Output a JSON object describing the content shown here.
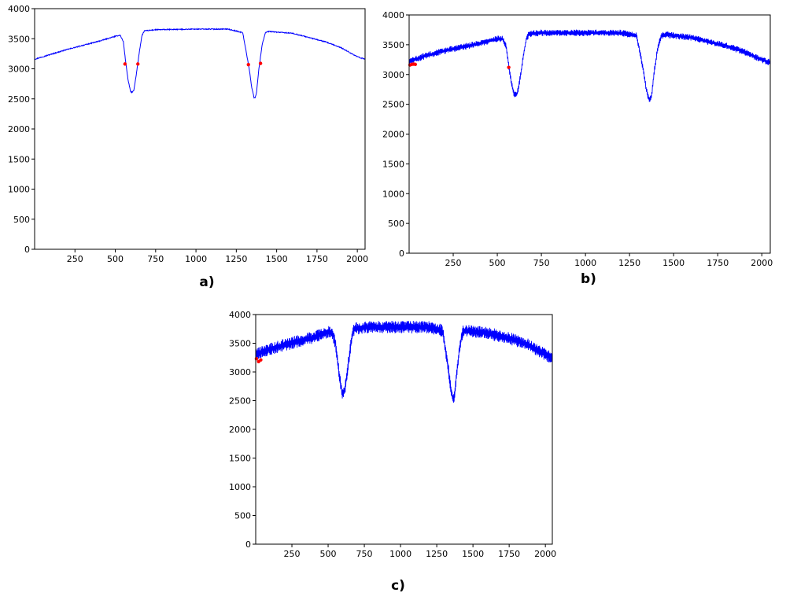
{
  "colors": {
    "series": "#0000ff",
    "marker": "#ff0000",
    "axis": "#000000",
    "background": "#ffffff"
  },
  "chart_data": [
    {
      "id": "a",
      "type": "line",
      "panel_label": "a)",
      "title": "",
      "xlabel": "",
      "ylabel": "",
      "xlim": [
        0,
        2048
      ],
      "ylim": [
        0,
        4000
      ],
      "xticks": [
        250,
        500,
        750,
        1000,
        1250,
        1500,
        1750,
        2000
      ],
      "yticks": [
        0,
        500,
        1000,
        1500,
        2000,
        2500,
        3000,
        3500,
        4000
      ],
      "grid": false,
      "noise_band": 15,
      "series": [
        {
          "x": [
            0,
            100,
            200,
            300,
            400,
            500,
            530,
            550,
            565,
            580,
            595,
            605,
            615,
            630,
            650,
            665,
            680,
            750,
            1000,
            1200,
            1290,
            1310,
            1330,
            1345,
            1360,
            1365,
            1375,
            1390,
            1410,
            1430,
            1450,
            1600,
            1800,
            1900,
            2000,
            2048
          ],
          "y": [
            3160,
            3240,
            3320,
            3390,
            3460,
            3540,
            3560,
            3450,
            3100,
            2800,
            2620,
            2610,
            2640,
            2900,
            3300,
            3550,
            3630,
            3650,
            3660,
            3660,
            3600,
            3300,
            3000,
            2700,
            2520,
            2510,
            2600,
            3000,
            3400,
            3600,
            3620,
            3590,
            3450,
            3350,
            3200,
            3160
          ]
        }
      ],
      "markers": [
        {
          "x": 560,
          "y": 3080
        },
        {
          "x": 640,
          "y": 3080
        },
        {
          "x": 1325,
          "y": 3070
        },
        {
          "x": 1400,
          "y": 3090
        }
      ]
    },
    {
      "id": "b",
      "type": "line",
      "panel_label": "b)",
      "title": "",
      "xlabel": "",
      "ylabel": "",
      "xlim": [
        0,
        2048
      ],
      "ylim": [
        0,
        4000
      ],
      "xticks": [
        250,
        500,
        750,
        1000,
        1250,
        1500,
        1750,
        2000
      ],
      "yticks": [
        0,
        500,
        1000,
        1500,
        2000,
        2500,
        3000,
        3500,
        4000
      ],
      "grid": false,
      "noise_band": 110,
      "series": [
        {
          "x": [
            0,
            100,
            200,
            300,
            400,
            500,
            530,
            550,
            565,
            580,
            595,
            605,
            615,
            630,
            650,
            665,
            680,
            750,
            1000,
            1200,
            1290,
            1310,
            1330,
            1345,
            1360,
            1365,
            1375,
            1390,
            1410,
            1430,
            1450,
            1600,
            1800,
            1900,
            2000,
            2048
          ],
          "y": [
            3220,
            3320,
            3400,
            3460,
            3520,
            3600,
            3600,
            3470,
            3150,
            2850,
            2680,
            2660,
            2700,
            2950,
            3350,
            3600,
            3680,
            3700,
            3700,
            3700,
            3650,
            3350,
            3050,
            2750,
            2580,
            2570,
            2650,
            3050,
            3450,
            3650,
            3670,
            3620,
            3480,
            3380,
            3250,
            3200
          ]
        }
      ],
      "markers": [
        {
          "x": 5,
          "y": 3160
        },
        {
          "x": 15,
          "y": 3170
        },
        {
          "x": 25,
          "y": 3175
        },
        {
          "x": 35,
          "y": 3170
        },
        {
          "x": 565,
          "y": 3120
        }
      ]
    },
    {
      "id": "c",
      "type": "line",
      "panel_label": "c)",
      "title": "",
      "xlabel": "",
      "ylabel": "",
      "xlim": [
        0,
        2048
      ],
      "ylim": [
        0,
        4000
      ],
      "xticks": [
        250,
        500,
        750,
        1000,
        1250,
        1500,
        1750,
        2000
      ],
      "yticks": [
        0,
        500,
        1000,
        1500,
        2000,
        2500,
        3000,
        3500,
        4000
      ],
      "grid": false,
      "noise_band": 220,
      "series": [
        {
          "x": [
            0,
            100,
            200,
            300,
            400,
            500,
            530,
            550,
            565,
            580,
            595,
            605,
            615,
            630,
            650,
            665,
            680,
            750,
            1000,
            1200,
            1290,
            1310,
            1330,
            1345,
            1360,
            1365,
            1375,
            1390,
            1410,
            1430,
            1450,
            1600,
            1800,
            1900,
            2000,
            2048
          ],
          "y": [
            3300,
            3400,
            3470,
            3540,
            3600,
            3700,
            3680,
            3500,
            3200,
            2900,
            2650,
            2620,
            2680,
            2950,
            3350,
            3650,
            3750,
            3780,
            3780,
            3780,
            3720,
            3400,
            3050,
            2750,
            2540,
            2520,
            2640,
            3050,
            3450,
            3700,
            3720,
            3680,
            3550,
            3450,
            3300,
            3250
          ]
        }
      ],
      "markers": [
        {
          "x": 5,
          "y": 3230
        },
        {
          "x": 20,
          "y": 3180
        },
        {
          "x": 35,
          "y": 3210
        }
      ]
    }
  ]
}
